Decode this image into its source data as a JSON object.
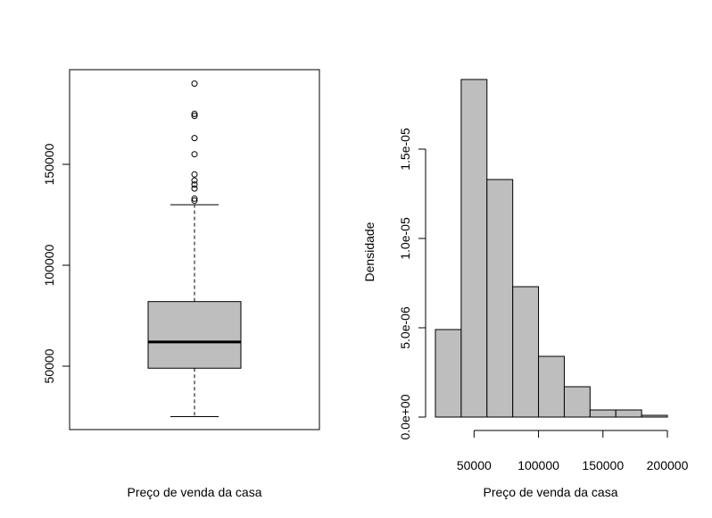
{
  "chart_data": [
    {
      "type": "boxplot",
      "xlabel": "Preço de venda da casa",
      "ylabel": "",
      "ylim": [
        20000,
        200000
      ],
      "yticks": [
        50000,
        100000,
        150000
      ],
      "ytick_labels": [
        "50000",
        "100000",
        "150000"
      ],
      "fill_color": "#bebebe",
      "stats": {
        "whisker_low": 25000,
        "q1": 49000,
        "median": 62000,
        "q3": 82000,
        "whisker_high": 130000
      },
      "outliers": [
        132000,
        133000,
        138000,
        140000,
        142000,
        145000,
        155000,
        163000,
        174000,
        175000,
        190000
      ]
    },
    {
      "type": "bar",
      "xlabel": "Preço de venda da casa",
      "ylabel": "Densidade",
      "xlim": [
        20000,
        200000
      ],
      "ylim": [
        0,
        1.9e-05
      ],
      "xticks": [
        50000,
        100000,
        150000,
        200000
      ],
      "xtick_labels": [
        "50000",
        "100000",
        "150000",
        "200000"
      ],
      "yticks": [
        0,
        5e-06,
        1e-05,
        1.5e-05
      ],
      "ytick_labels": [
        "0.0e+00",
        "5.0e-06",
        "1.0e-05",
        "1.5e-05"
      ],
      "fill_color": "#bebebe",
      "bins": [
        {
          "x0": 20000,
          "x1": 40000,
          "density": 4.9e-06
        },
        {
          "x0": 40000,
          "x1": 60000,
          "density": 1.89e-05
        },
        {
          "x0": 60000,
          "x1": 80000,
          "density": 1.33e-05
        },
        {
          "x0": 80000,
          "x1": 100000,
          "density": 7.3e-06
        },
        {
          "x0": 100000,
          "x1": 120000,
          "density": 3.4e-06
        },
        {
          "x0": 120000,
          "x1": 140000,
          "density": 1.7e-06
        },
        {
          "x0": 140000,
          "x1": 160000,
          "density": 4e-07
        },
        {
          "x0": 160000,
          "x1": 180000,
          "density": 4e-07
        },
        {
          "x0": 180000,
          "x1": 200000,
          "density": 1e-07
        }
      ]
    }
  ]
}
